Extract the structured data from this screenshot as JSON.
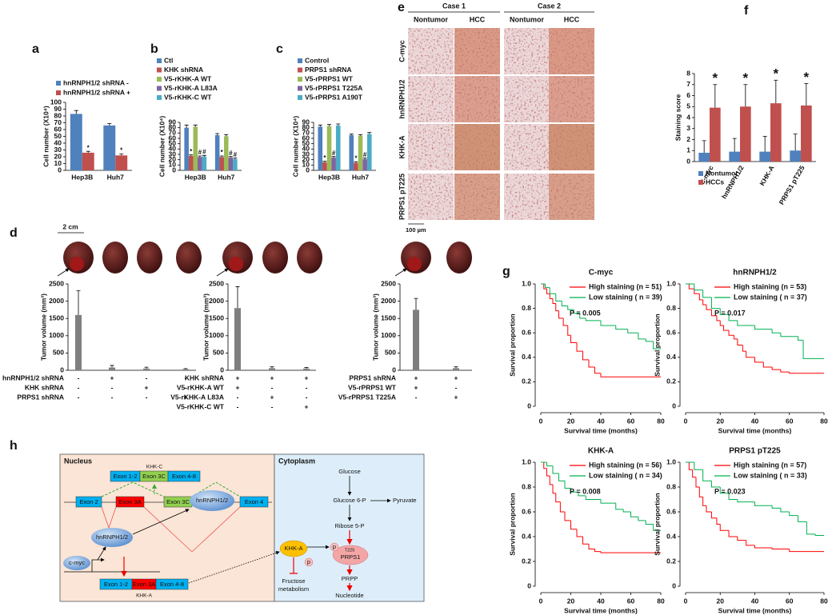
{
  "chart_data": [
    {
      "panel": "a",
      "type": "bar",
      "ylabel": "Cell number (X10⁴)",
      "categories": [
        "Hep3B",
        "Huh7"
      ],
      "series": [
        {
          "name": "hnRNPH1/2 shRNA -",
          "color": "#4f81bd",
          "values": [
            83,
            66
          ],
          "errors": [
            5,
            3
          ]
        },
        {
          "name": "hnRNPH1/2 shRNA +",
          "color": "#c0504d",
          "values": [
            26,
            22
          ],
          "errors": [
            2,
            2
          ],
          "annotations": [
            "*",
            "*"
          ]
        }
      ],
      "ylim": [
        0,
        100
      ],
      "yticks": [
        0,
        10,
        20,
        30,
        40,
        50,
        60,
        70,
        80,
        90,
        100
      ]
    },
    {
      "panel": "b",
      "type": "bar",
      "ylabel": "Cell number (X10⁴)",
      "categories": [
        "Hep3B",
        "Huh7"
      ],
      "series": [
        {
          "name": "Ctl",
          "color": "#4f81bd",
          "values": [
            80,
            66
          ],
          "errors": [
            5,
            3
          ]
        },
        {
          "name": "KHK shRNA",
          "color": "#c0504d",
          "values": [
            27,
            25
          ],
          "errors": [
            2,
            2
          ],
          "annotations": [
            "*",
            "*"
          ]
        },
        {
          "name": "V5-rKHK-A WT",
          "color": "#9bbb59",
          "values": [
            82,
            64
          ],
          "errors": [
            3,
            3
          ]
        },
        {
          "name": "V5-rKHK-A L83A",
          "color": "#8064a2",
          "values": [
            25,
            24
          ],
          "errors": [
            2,
            2
          ],
          "annotations": [
            "#",
            "#"
          ]
        },
        {
          "name": "V5-rKHK-C WT",
          "color": "#4bacc6",
          "values": [
            26,
            21
          ],
          "errors": [
            2,
            2
          ],
          "annotations": [
            "#",
            "#"
          ]
        }
      ],
      "ylim": [
        0,
        90
      ],
      "yticks": [
        0,
        10,
        20,
        30,
        40,
        50,
        60,
        70,
        80,
        90
      ]
    },
    {
      "panel": "c",
      "type": "bar",
      "ylabel": "Cell number (X10⁴)",
      "categories": [
        "Hep3B",
        "Huh7"
      ],
      "series": [
        {
          "name": "Control",
          "color": "#4f81bd",
          "values": [
            82,
            66
          ],
          "errors": [
            3,
            2
          ]
        },
        {
          "name": "PRPS1 shRNA",
          "color": "#c0504d",
          "values": [
            15,
            14
          ],
          "errors": [
            2,
            2
          ],
          "annotations": [
            "*",
            "*"
          ]
        },
        {
          "name": "V5-rPRPS1 WT",
          "color": "#9bbb59",
          "values": [
            83,
            65
          ],
          "errors": [
            3,
            2
          ]
        },
        {
          "name": "V5-rPRPS1 T225A",
          "color": "#8064a2",
          "values": [
            24,
            21
          ],
          "errors": [
            2,
            2
          ],
          "annotations": [
            "#",
            "#"
          ]
        },
        {
          "name": "V5-rPRPS1 A190T",
          "color": "#4bacc6",
          "values": [
            84,
            68
          ],
          "errors": [
            3,
            3
          ]
        }
      ],
      "ylim": [
        0,
        90
      ],
      "yticks": [
        0,
        10,
        20,
        30,
        40,
        50,
        60,
        70,
        80,
        90
      ]
    },
    {
      "panel": "d",
      "type": "bar",
      "scale_bar": "2 cm",
      "ylabel": "Tumor volume (mm³)",
      "color": "#7f7f7f",
      "values": [
        1600,
        80,
        50,
        30
      ],
      "errors": [
        700,
        60,
        40,
        20
      ],
      "ylim": [
        0,
        2500
      ],
      "yticks": [
        0,
        500,
        1000,
        1500,
        2000,
        2500
      ],
      "conditions": [
        {
          "label": "hnRNPH1/2 shRNA",
          "marks": [
            "-",
            "+",
            "-",
            "-"
          ]
        },
        {
          "label": "KHK shRNA",
          "marks": [
            "-",
            "-",
            "+",
            "-"
          ]
        },
        {
          "label": "PRPS1 shRNA",
          "marks": [
            "-",
            "-",
            "-",
            "+"
          ]
        }
      ]
    },
    {
      "type": "bar",
      "ylabel": "Tumor volume (mm³)",
      "color": "#7f7f7f",
      "values": [
        1800,
        60,
        50
      ],
      "errors": [
        620,
        40,
        30
      ],
      "ylim": [
        0,
        2500
      ],
      "yticks": [
        0,
        500,
        1000,
        1500,
        2000,
        2500
      ],
      "conditions": [
        {
          "label": "KHK shRNA",
          "marks": [
            "+",
            "+",
            "+"
          ]
        },
        {
          "label": "V5-rKHK-A WT",
          "marks": [
            "+",
            "-",
            "-"
          ]
        },
        {
          "label": "V5-rKHK-A L83A",
          "marks": [
            "-",
            "+",
            "-"
          ]
        },
        {
          "label": "V5-rKHK-C WT",
          "marks": [
            "-",
            "-",
            "+"
          ]
        }
      ]
    },
    {
      "type": "bar",
      "ylabel": "Tumor volume (mm³)",
      "color": "#7f7f7f",
      "values": [
        1750,
        60
      ],
      "errors": [
        330,
        40
      ],
      "ylim": [
        0,
        2500
      ],
      "yticks": [
        0,
        500,
        1000,
        1500,
        2000,
        2500
      ],
      "conditions": [
        {
          "label": "PRPS1 shRNA",
          "marks": [
            "+",
            "+"
          ]
        },
        {
          "label": "V5-rPRPS1 WT",
          "marks": [
            "+",
            "-"
          ]
        },
        {
          "label": "V5-rPRPS1 T225A",
          "marks": [
            "-",
            "+"
          ]
        }
      ]
    },
    {
      "panel": "f",
      "type": "bar",
      "ylabel": "Staining score",
      "categories": [
        "C-myc",
        "hnRNPH1/2",
        "KHK-A",
        "PRPS1 pT225"
      ],
      "series": [
        {
          "name": "Nontumor",
          "color": "#4f81bd",
          "values": [
            0.8,
            0.9,
            0.9,
            1.0
          ],
          "errors": [
            1.1,
            1.2,
            1.4,
            1.5
          ]
        },
        {
          "name": "HCCs",
          "color": "#c0504d",
          "values": [
            4.9,
            5.0,
            5.3,
            5.1
          ],
          "errors": [
            2.1,
            2.0,
            2.1,
            2.0
          ],
          "annotations": [
            "*",
            "*",
            "*",
            "*"
          ]
        }
      ],
      "ylim": [
        0,
        8
      ],
      "yticks": [
        0,
        1,
        2,
        3,
        4,
        5,
        6,
        7,
        8
      ]
    },
    {
      "panel": "g",
      "type": "km",
      "title": "C-myc",
      "xlabel": "Survival time (months)",
      "ylabel": "Survival proportion",
      "annotation": "P = 0.005",
      "xlim": [
        0,
        80
      ],
      "ylim": [
        0,
        1
      ],
      "xticks": [
        0,
        20,
        40,
        60,
        80
      ],
      "yticks": [
        0,
        0.2,
        0.4,
        0.6,
        0.8,
        {
          "value": 1,
          "label": "1.0"
        }
      ],
      "series": [
        {
          "name": "High staining (n = 51)",
          "color": "#ff0000",
          "x": [
            0,
            2,
            4,
            6,
            8,
            10,
            12,
            15,
            18,
            20,
            24,
            28,
            32,
            36,
            40,
            80
          ],
          "values": [
            1,
            0.96,
            0.92,
            0.88,
            0.84,
            0.78,
            0.72,
            0.66,
            0.58,
            0.52,
            0.45,
            0.38,
            0.32,
            0.27,
            0.24,
            0.24
          ]
        },
        {
          "name": "Low staining ( n = 39)",
          "color": "#00b050",
          "x": [
            0,
            3,
            6,
            10,
            14,
            18,
            22,
            26,
            30,
            40,
            50,
            58,
            65,
            70,
            75,
            80
          ],
          "values": [
            1,
            0.97,
            0.92,
            0.86,
            0.82,
            0.79,
            0.76,
            0.72,
            0.7,
            0.66,
            0.63,
            0.6,
            0.55,
            0.53,
            0.47,
            0.47
          ]
        }
      ]
    },
    {
      "type": "km",
      "title": "hnRNPH1/2",
      "xlabel": "Survival time (months)",
      "ylabel": "Survival proportion",
      "annotation": "P = 0.017",
      "xlim": [
        0,
        80
      ],
      "ylim": [
        0,
        1
      ],
      "xticks": [
        0,
        20,
        40,
        60,
        80
      ],
      "yticks": [
        0,
        0.2,
        0.4,
        0.6,
        0.8,
        {
          "value": 1,
          "label": "1.0"
        }
      ],
      "series": [
        {
          "name": "High staining (n = 53)",
          "color": "#ff0000",
          "x": [
            0,
            2,
            5,
            8,
            10,
            12,
            15,
            18,
            20,
            22,
            25,
            28,
            30,
            33,
            35,
            40,
            45,
            50,
            55,
            60,
            80
          ],
          "values": [
            1,
            0.96,
            0.92,
            0.87,
            0.83,
            0.79,
            0.74,
            0.7,
            0.66,
            0.62,
            0.58,
            0.55,
            0.5,
            0.45,
            0.4,
            0.36,
            0.32,
            0.3,
            0.28,
            0.27,
            0.27
          ]
        },
        {
          "name": "Low staining ( n = 37)",
          "color": "#00b050",
          "x": [
            0,
            5,
            10,
            15,
            20,
            25,
            30,
            40,
            50,
            55,
            65,
            68,
            80
          ],
          "values": [
            1,
            0.95,
            0.89,
            0.8,
            0.75,
            0.7,
            0.66,
            0.63,
            0.6,
            0.57,
            0.54,
            0.39,
            0.39
          ]
        }
      ]
    },
    {
      "type": "km",
      "title": "KHK-A",
      "xlabel": "Survival time (months)",
      "ylabel": "Survival proportion",
      "annotation": "P = 0.008",
      "xlim": [
        0,
        80
      ],
      "ylim": [
        0,
        1
      ],
      "xticks": [
        0,
        20,
        40,
        60,
        80
      ],
      "yticks": [
        0,
        0.2,
        0.4,
        0.6,
        0.8,
        {
          "value": 1,
          "label": "1.0"
        }
      ],
      "series": [
        {
          "name": "High staining (n = 56)",
          "color": "#ff0000",
          "x": [
            0,
            2,
            4,
            6,
            8,
            10,
            13,
            16,
            20,
            24,
            28,
            32,
            36,
            40,
            80
          ],
          "values": [
            1,
            0.95,
            0.89,
            0.82,
            0.75,
            0.68,
            0.6,
            0.53,
            0.46,
            0.4,
            0.34,
            0.3,
            0.28,
            0.27,
            0.27
          ]
        },
        {
          "name": "Low staining ( n = 34)",
          "color": "#00b050",
          "x": [
            0,
            4,
            8,
            12,
            16,
            20,
            25,
            30,
            40,
            50,
            55,
            60,
            65,
            70,
            75,
            80
          ],
          "values": [
            1,
            0.97,
            0.91,
            0.85,
            0.79,
            0.76,
            0.73,
            0.7,
            0.67,
            0.62,
            0.6,
            0.56,
            0.53,
            0.5,
            0.45,
            0.45
          ]
        }
      ]
    },
    {
      "type": "km",
      "title": "PRPS1 pT225",
      "xlabel": "Survival time (months)",
      "ylabel": "Survival proportion",
      "annotation": "P = 0.023",
      "xlim": [
        0,
        80
      ],
      "ylim": [
        0,
        1
      ],
      "xticks": [
        0,
        20,
        40,
        60,
        80
      ],
      "yticks": [
        0,
        0.2,
        0.4,
        0.6,
        0.8,
        {
          "value": 1,
          "label": "1.0"
        }
      ],
      "series": [
        {
          "name": "High staining (n = 57)",
          "color": "#ff0000",
          "x": [
            0,
            2,
            4,
            6,
            8,
            10,
            12,
            15,
            18,
            20,
            25,
            30,
            35,
            40,
            50,
            60,
            80
          ],
          "values": [
            1,
            0.94,
            0.88,
            0.8,
            0.72,
            0.65,
            0.6,
            0.55,
            0.5,
            0.45,
            0.4,
            0.37,
            0.33,
            0.31,
            0.3,
            0.28,
            0.28
          ]
        },
        {
          "name": "Low staining ( n = 33)",
          "color": "#00b050",
          "x": [
            0,
            5,
            10,
            15,
            20,
            25,
            30,
            40,
            50,
            55,
            60,
            65,
            70,
            75,
            80
          ],
          "values": [
            1,
            0.94,
            0.85,
            0.8,
            0.75,
            0.7,
            0.68,
            0.65,
            0.63,
            0.6,
            0.57,
            0.52,
            0.42,
            0.41,
            0.41
          ]
        }
      ]
    }
  ],
  "ihc": {
    "panel": "e",
    "cases": [
      "Case 1",
      "Case 2"
    ],
    "columns": [
      "Nontumor",
      "HCC",
      "Nontumor",
      "HCC"
    ],
    "rows": [
      "C-myc",
      "hnRNPH1/2",
      "KHK-A",
      "PRPS1 pT225"
    ],
    "scale": "100 µm"
  },
  "diagram": {
    "panel": "h",
    "nucleus": "Nucleus",
    "cytoplasm": "Cytoplasm",
    "khk_c": {
      "label": "KHK-C",
      "exons": [
        "Exon 1-2",
        "Exon 3C",
        "Exon 4-8"
      ]
    },
    "gene": [
      "Exon 2",
      "Exon 3A",
      "Exon 3C",
      "Exon 4"
    ],
    "hnrnp_gene": "hnRNPH1/2",
    "hnrnp": "hnRNPH1/2",
    "cmyc": "c-myc",
    "khk_a": {
      "label": "KHK-A",
      "exons": [
        "Exon 1-2",
        "Exon 3A",
        "Exon 4-8"
      ]
    },
    "glucose": "Glucose",
    "g6p": "Glucose 6-P",
    "pyruvate": "Pyruvate",
    "r5p": "Ribose 5-P",
    "khk_a_protein": "KHK-A",
    "p_khk": "p",
    "p_prps1": "p",
    "t225": "T225",
    "prps1": "PRPS1",
    "prpp": "PRPP",
    "fructose": [
      "Fructose",
      "metabolism"
    ],
    "nucleotide": "Nucleotide"
  }
}
